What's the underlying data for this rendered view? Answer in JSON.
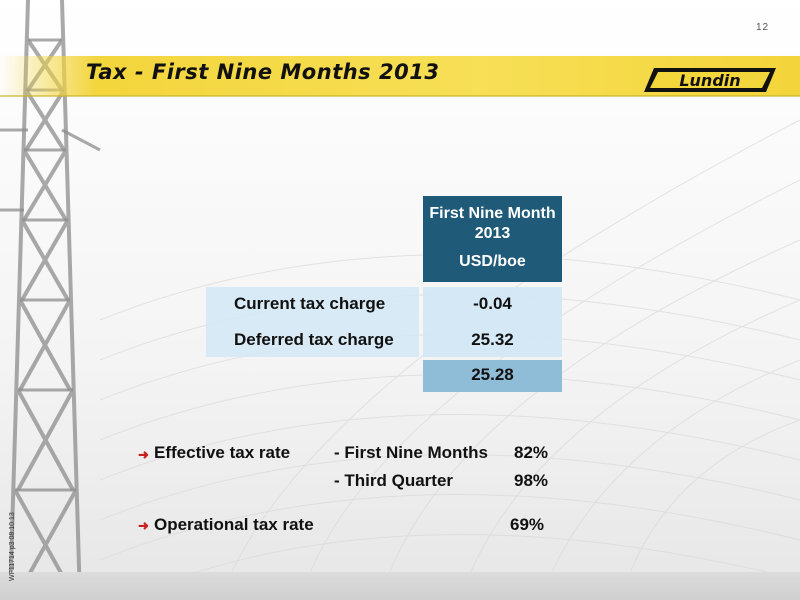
{
  "slide": {
    "page_number": "12",
    "title": "Tax - First Nine Months 2013",
    "logo_text": "Lundin",
    "side_code": "WF11714 p3 08.10.13"
  },
  "table": {
    "column_header": [
      "First Nine Month",
      "2013",
      "USD/boe"
    ],
    "rows": [
      {
        "label": "Current tax charge",
        "value": "-0.04"
      },
      {
        "label": "Deferred tax charge",
        "value": "25.32"
      }
    ],
    "total": "25.28"
  },
  "bullets": {
    "effective": {
      "label": "Effective tax rate",
      "periods": [
        {
          "period": "- First Nine Months",
          "value": "82%"
        },
        {
          "period": "- Third Quarter",
          "value": "98%"
        }
      ]
    },
    "operational": {
      "label": "Operational tax rate",
      "value": "69%"
    }
  },
  "colors": {
    "header_bg": "#1f5a78",
    "title_bar": "#f3d53c",
    "bullet_arrow": "#c81f1f",
    "total_bg": "#8fbcd6"
  }
}
